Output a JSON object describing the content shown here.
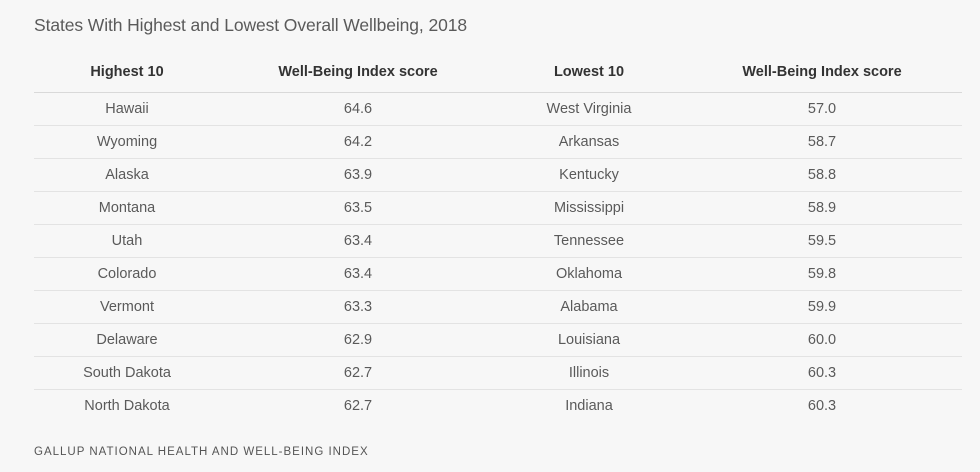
{
  "title": "States With Highest and Lowest Overall Wellbeing, 2018",
  "source": "GALLUP NATIONAL HEALTH AND WELL-BEING INDEX",
  "chart_data": {
    "type": "table",
    "title": "States With Highest and Lowest Overall Wellbeing, 2018",
    "columns": [
      "Highest 10",
      "Well-Being Index score",
      "Lowest 10",
      "Well-Being Index score"
    ],
    "rows": [
      [
        "Hawaii",
        "64.6",
        "West Virginia",
        "57.0"
      ],
      [
        "Wyoming",
        "64.2",
        "Arkansas",
        "58.7"
      ],
      [
        "Alaska",
        "63.9",
        "Kentucky",
        "58.8"
      ],
      [
        "Montana",
        "63.5",
        "Mississippi",
        "58.9"
      ],
      [
        "Utah",
        "63.4",
        "Tennessee",
        "59.5"
      ],
      [
        "Colorado",
        "63.4",
        "Oklahoma",
        "59.8"
      ],
      [
        "Vermont",
        "63.3",
        "Alabama",
        "59.9"
      ],
      [
        "Delaware",
        "62.9",
        "Louisiana",
        "60.0"
      ],
      [
        "South Dakota",
        "62.7",
        "Illinois",
        "60.3"
      ],
      [
        "North Dakota",
        "62.7",
        "Indiana",
        "60.3"
      ]
    ]
  }
}
